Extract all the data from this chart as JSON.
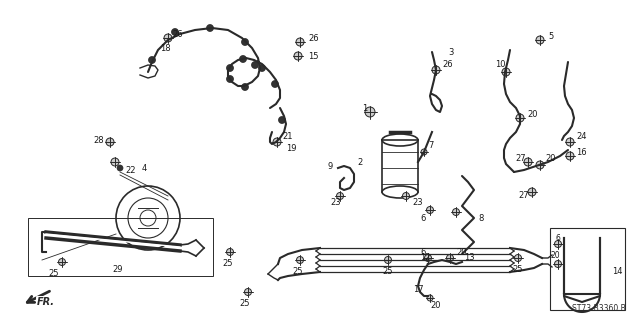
{
  "bg_color": "#ffffff",
  "line_color": "#2a2a2a",
  "part_number_ref": "ST73-B3360 B",
  "figsize": [
    6.4,
    3.2
  ],
  "dpi": 100
}
